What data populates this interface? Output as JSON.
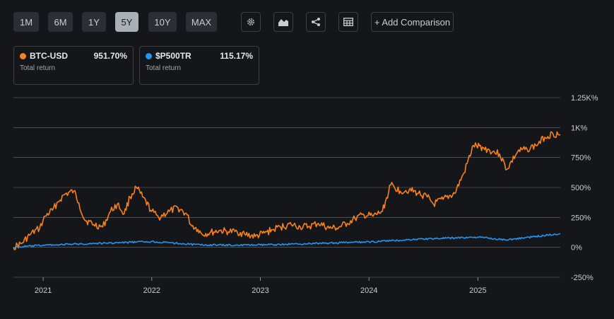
{
  "toolbar": {
    "ranges": [
      {
        "label": "1M",
        "active": false
      },
      {
        "label": "6M",
        "active": false
      },
      {
        "label": "1Y",
        "active": false
      },
      {
        "label": "5Y",
        "active": true
      },
      {
        "label": "10Y",
        "active": false
      },
      {
        "label": "MAX",
        "active": false
      }
    ],
    "tools": [
      {
        "icon": "gear-icon"
      },
      {
        "icon": "area-chart-icon"
      },
      {
        "icon": "share-icon"
      },
      {
        "icon": "table-icon"
      }
    ],
    "add_comparison": "+ Add Comparison"
  },
  "legend": [
    {
      "symbol": "BTC-USD",
      "value": "951.70%",
      "sublabel": "Total return",
      "color": "#f7821b"
    },
    {
      "symbol": "$P500TR",
      "value": "115.17%",
      "sublabel": "Total return",
      "color": "#2196f3"
    }
  ],
  "chart_data": {
    "type": "line",
    "ytick_labels": [
      "1.25K%",
      "1K%",
      "750%",
      "500%",
      "250%",
      "0%",
      "-250%"
    ],
    "yticks": [
      1250,
      1000,
      750,
      500,
      250,
      0,
      -250
    ],
    "ylim": [
      -250,
      1250
    ],
    "xtick_labels": [
      "2021",
      "2022",
      "2023",
      "2024",
      "2025"
    ],
    "xticks": [
      "2021-01-01",
      "2022-01-01",
      "2023-01-01",
      "2024-01-01",
      "2025-01-01"
    ],
    "xlim": [
      "2020-09-23",
      "2025-10-05"
    ],
    "grid": true,
    "series": [
      {
        "name": "BTC-USD",
        "color": "#f7821b",
        "x": [
          "2020-09-23",
          "2020-10-20",
          "2020-11-20",
          "2020-12-20",
          "2021-01-08",
          "2021-02-01",
          "2021-02-20",
          "2021-03-13",
          "2021-04-14",
          "2021-05-01",
          "2021-05-20",
          "2021-06-20",
          "2021-07-20",
          "2021-08-15",
          "2021-09-07",
          "2021-09-30",
          "2021-10-20",
          "2021-11-10",
          "2021-12-01",
          "2022-01-01",
          "2022-01-24",
          "2022-03-01",
          "2022-03-30",
          "2022-04-30",
          "2022-05-12",
          "2022-06-05",
          "2022-06-18",
          "2022-07-15",
          "2022-08-15",
          "2022-09-15",
          "2022-10-15",
          "2022-11-09",
          "2022-12-15",
          "2023-01-15",
          "2023-02-15",
          "2023-03-10",
          "2023-04-15",
          "2023-05-15",
          "2023-06-15",
          "2023-07-15",
          "2023-08-20",
          "2023-09-15",
          "2023-10-20",
          "2023-11-15",
          "2023-12-15",
          "2024-01-15",
          "2024-02-15",
          "2024-03-14",
          "2024-04-15",
          "2024-05-15",
          "2024-06-15",
          "2024-07-15",
          "2024-08-05",
          "2024-09-06",
          "2024-10-15",
          "2024-11-15",
          "2024-12-17",
          "2025-01-20",
          "2025-02-20",
          "2025-03-15",
          "2025-04-08",
          "2025-05-15",
          "2025-06-15",
          "2025-07-15",
          "2025-08-14",
          "2025-09-10",
          "2025-10-05"
        ],
        "values": [
          0,
          30,
          110,
          160,
          260,
          310,
          380,
          440,
          470,
          370,
          230,
          190,
          170,
          300,
          360,
          280,
          420,
          500,
          420,
          300,
          250,
          300,
          330,
          270,
          190,
          150,
          110,
          120,
          140,
          130,
          130,
          110,
          90,
          120,
          150,
          170,
          190,
          170,
          175,
          200,
          160,
          160,
          200,
          240,
          270,
          260,
          300,
          520,
          470,
          480,
          450,
          420,
          360,
          400,
          450,
          620,
          850,
          830,
          800,
          780,
          650,
          800,
          820,
          850,
          920,
          950,
          940
        ]
      },
      {
        "name": "$P500TR",
        "color": "#2196f3",
        "x": [
          "2020-09-23",
          "2021-01-01",
          "2021-06-01",
          "2021-12-30",
          "2022-06-15",
          "2022-10-15",
          "2023-01-01",
          "2023-07-01",
          "2024-01-01",
          "2024-07-01",
          "2025-01-01",
          "2025-04-08",
          "2025-10-05"
        ],
        "values": [
          0,
          18,
          30,
          48,
          20,
          18,
          20,
          32,
          45,
          70,
          85,
          62,
          115
        ]
      }
    ]
  }
}
